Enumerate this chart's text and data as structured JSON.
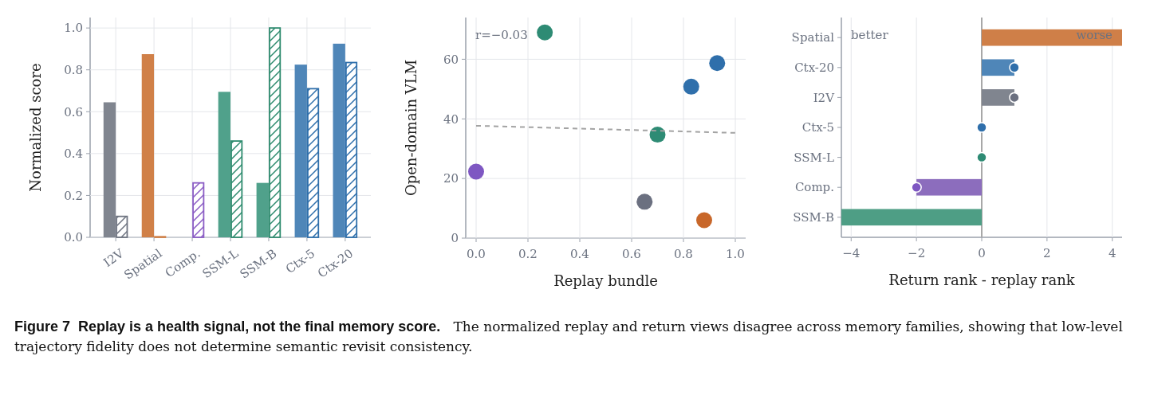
{
  "chart_data": [
    {
      "type": "bar",
      "ylabel": "Normalized score",
      "categories": [
        "I2V",
        "Spatial",
        "Comp.",
        "SSM-L",
        "SSM-B",
        "Ctx-5",
        "Ctx-20"
      ],
      "series": [
        {
          "values": [
            0.645,
            0.875,
            0,
            0.695,
            0.26,
            0.825,
            0.925
          ],
          "colors": [
            "#80858f",
            "#d08048",
            "#8c6dbd",
            "#50a18b",
            "#50a18b",
            "#4f86b8",
            "#4f86b8"
          ]
        },
        {
          "values": [
            0.1,
            0.003,
            0.26,
            0.46,
            1.0,
            0.71,
            0.835
          ],
          "colors": [
            "#6e7480",
            "#d08048",
            "#8a5cc4",
            "#2e8b6e",
            "#2e8b6e",
            "#2f6fab",
            "#2f6fab"
          ]
        }
      ],
      "ylim": [
        0,
        1.05
      ],
      "yticks": [
        {
          "value": 0,
          "label": "0.0"
        },
        0.2,
        0.4,
        0.6,
        0.8,
        {
          "value": 1,
          "label": "1.0"
        }
      ],
      "grid": true
    },
    {
      "type": "scatter",
      "xlabel": "Replay bundle",
      "ylabel": "Open-domain VLM",
      "series": [
        {
          "x": [
            0.265,
            0.93,
            0.83,
            0.7,
            0.0,
            0.65,
            0.88
          ],
          "values": [
            69,
            58.7,
            50.8,
            34.7,
            22.3,
            12.2,
            6
          ],
          "colors": [
            "#2e8b74",
            "#2f6fab",
            "#2f6fab",
            "#2e8b74",
            "#7e57c2",
            "#6b7080",
            "#c8672a"
          ],
          "marker": "circle"
        },
        {
          "type": "line",
          "x": [
            0,
            1
          ],
          "values": [
            37.7,
            35.3
          ],
          "color": "#a3a3a3",
          "line_style": "dashed"
        }
      ],
      "xlim": [
        -0.04,
        1.04
      ],
      "xticks": [
        {
          "value": 0,
          "label": "0.0"
        },
        0.2,
        0.4,
        0.6,
        0.8,
        {
          "value": 1,
          "label": "1.0"
        }
      ],
      "ylim": [
        0,
        74
      ],
      "yticks": [
        0,
        20,
        40,
        60
      ],
      "grid": true,
      "annotations": [
        "r=−0.03"
      ]
    },
    {
      "type": "bar",
      "orientation": "horizontal",
      "xlabel": "Return rank - replay rank",
      "categories": [
        "Spatial",
        "Ctx-20",
        "I2V",
        "Ctx-5",
        "SSM-L",
        "Comp.",
        "SSM-B"
      ],
      "series": [
        {
          "values": [
            4.3,
            1,
            1,
            0,
            0,
            -2,
            -4.3
          ],
          "colors": [
            "#cf7f48",
            "#4f86b8",
            "#80858f",
            "#2f6fab",
            "#2e8b74",
            "#8c6dbd",
            "#4e9e85"
          ]
        },
        {
          "type": "scatter",
          "x": [
            "Ctx-20",
            "I2V",
            "Ctx-5",
            "SSM-L",
            "Comp."
          ],
          "values": [
            1,
            1,
            0,
            0,
            -2
          ],
          "colors": [
            "#2f6fab",
            "#6b7080",
            "#2f6fab",
            "#2e8b74",
            "#7e57c2"
          ],
          "marker": "circle"
        }
      ],
      "xlim": [
        -4.3,
        4.3
      ],
      "xticks": [
        {
          "value": -4,
          "label": "−4"
        },
        {
          "value": -2,
          "label": "−2"
        },
        0,
        2,
        4
      ],
      "grid": "x",
      "ref_lines": [
        {
          "axis": "x",
          "value": 0,
          "color": "#a8a8a8"
        }
      ],
      "annotations": [
        "better",
        "worse"
      ]
    },
    {
      "type": "other",
      "title": "Figure 7  Replay is a health signal, not the final memory score.",
      "annotations": [
        "The normalized replay and return views disagree across memory families, showing that low-level trajectory fidelity does not determine semantic revisit consistency."
      ]
    }
  ]
}
